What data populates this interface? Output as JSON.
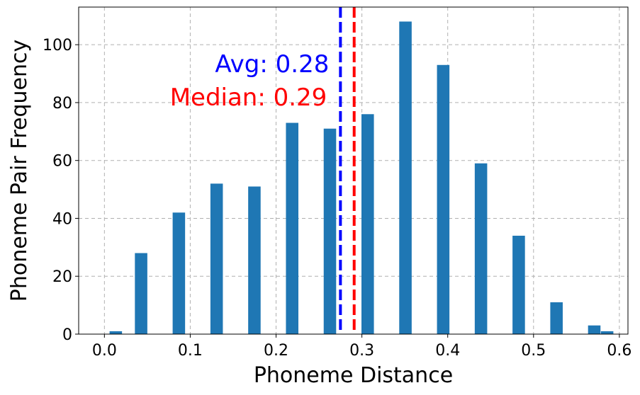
{
  "chart_data": {
    "type": "bar",
    "xlabel": "Phoneme Distance",
    "ylabel": "Phoneme Pair Frequency",
    "xlim": [
      -0.03,
      0.61
    ],
    "ylim": [
      0,
      113
    ],
    "xticks": [
      0.0,
      0.1,
      0.2,
      0.3,
      0.4,
      0.5,
      0.6
    ],
    "xtick_labels": [
      "0.0",
      "0.1",
      "0.2",
      "0.3",
      "0.4",
      "0.5",
      "0.6"
    ],
    "yticks": [
      0,
      20,
      40,
      60,
      80,
      100
    ],
    "ytick_labels": [
      "0",
      "20",
      "40",
      "60",
      "80",
      "100"
    ],
    "grid": true,
    "bar_width": 0.0145,
    "bar_color": "#1f77b4",
    "bins": [
      0.006,
      0.0355,
      0.0795,
      0.1235,
      0.1675,
      0.2115,
      0.2555,
      0.2995,
      0.3435,
      0.3875,
      0.4315,
      0.4755,
      0.5195,
      0.5635,
      0.5785
    ],
    "values": [
      1,
      28,
      42,
      52,
      51,
      73,
      71,
      76,
      108,
      93,
      59,
      34,
      11,
      3,
      1
    ],
    "mean_line": {
      "x": 0.275,
      "color": "#0000ff",
      "label": "Avg: 0.28"
    },
    "median_line": {
      "x": 0.291,
      "color": "#ff0000",
      "label": "Median: 0.29"
    }
  }
}
